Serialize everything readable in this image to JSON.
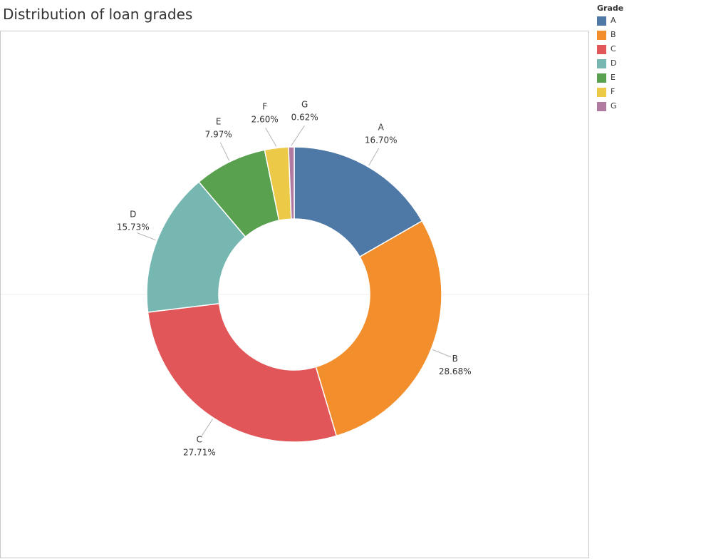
{
  "title": "Distribution of loan grades",
  "legend": {
    "title": "Grade",
    "items": [
      {
        "label": "A",
        "color": "#4e79a7"
      },
      {
        "label": "B",
        "color": "#f28e2b"
      },
      {
        "label": "C",
        "color": "#e15759"
      },
      {
        "label": "D",
        "color": "#76b7b2"
      },
      {
        "label": "E",
        "color": "#59a14f"
      },
      {
        "label": "F",
        "color": "#edc948"
      },
      {
        "label": "G",
        "color": "#b07aa1"
      }
    ]
  },
  "chart_data": {
    "type": "pie",
    "title": "Distribution of loan grades",
    "donut": true,
    "legend_title": "Grade",
    "legend_position": "right",
    "categories": [
      "A",
      "B",
      "C",
      "D",
      "E",
      "F",
      "G"
    ],
    "values": [
      16.7,
      28.68,
      27.71,
      15.73,
      7.97,
      2.6,
      0.62
    ],
    "value_labels": [
      "16.70%",
      "28.68%",
      "27.71%",
      "15.73%",
      "7.97%",
      "2.60%",
      "0.62%"
    ],
    "colors": [
      "#4e79a7",
      "#f28e2b",
      "#e15759",
      "#76b7b2",
      "#59a14f",
      "#edc948",
      "#b07aa1"
    ]
  }
}
